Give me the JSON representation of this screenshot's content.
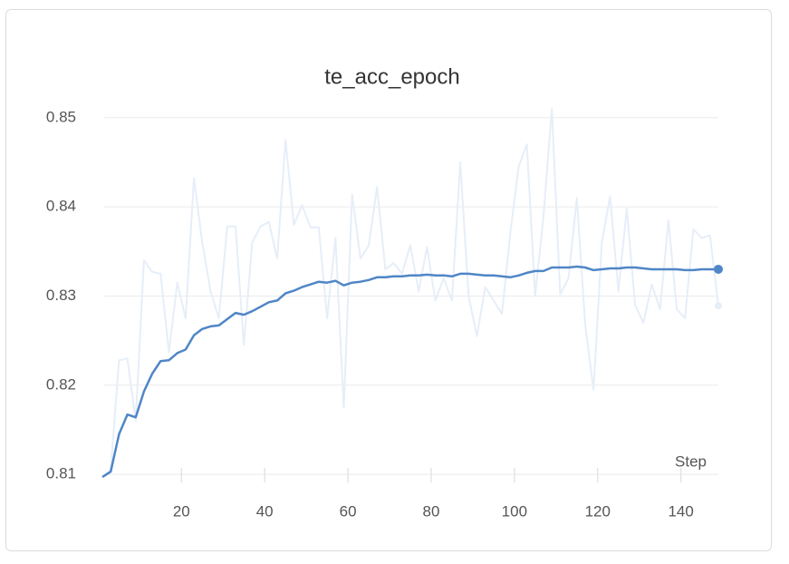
{
  "chart_data": {
    "type": "line",
    "title": "te_acc_epoch",
    "x_label": "Step",
    "x": [
      1,
      3,
      5,
      7,
      9,
      11,
      13,
      15,
      17,
      19,
      21,
      23,
      25,
      27,
      29,
      31,
      33,
      35,
      37,
      39,
      41,
      43,
      45,
      47,
      49,
      51,
      53,
      55,
      57,
      59,
      61,
      63,
      65,
      67,
      69,
      71,
      73,
      75,
      77,
      79,
      81,
      83,
      85,
      87,
      89,
      91,
      93,
      95,
      97,
      99,
      101,
      103,
      105,
      107,
      109,
      111,
      113,
      115,
      117,
      119,
      121,
      123,
      125,
      127,
      129,
      131,
      133,
      135,
      137,
      139,
      141,
      143,
      145,
      147,
      149
    ],
    "series": [
      {
        "color": "#e6eef8",
        "values": [
          0.8097,
          0.8105,
          0.8228,
          0.823,
          0.816,
          0.834,
          0.8327,
          0.8325,
          0.8237,
          0.8315,
          0.8275,
          0.8432,
          0.836,
          0.8305,
          0.8275,
          0.8378,
          0.8378,
          0.8245,
          0.836,
          0.8378,
          0.8383,
          0.8342,
          0.8475,
          0.838,
          0.8402,
          0.8377,
          0.8377,
          0.8275,
          0.8365,
          0.8175,
          0.8414,
          0.8342,
          0.8357,
          0.8422,
          0.833,
          0.8337,
          0.8325,
          0.8357,
          0.8305,
          0.8355,
          0.8295,
          0.832,
          0.8295,
          0.845,
          0.83,
          0.8255,
          0.831,
          0.8295,
          0.828,
          0.837,
          0.8445,
          0.847,
          0.83,
          0.839,
          0.851,
          0.8302,
          0.832,
          0.841,
          0.8268,
          0.8195,
          0.836,
          0.8412,
          0.8305,
          0.8398,
          0.829,
          0.827,
          0.8313,
          0.8285,
          0.8385,
          0.8285,
          0.8275,
          0.8375,
          0.8365,
          0.8368,
          0.8289
        ]
      },
      {
        "color": "#4f86c6",
        "values": [
          0.8097,
          0.8103,
          0.8145,
          0.8167,
          0.8164,
          0.8193,
          0.8213,
          0.8227,
          0.8228,
          0.8236,
          0.824,
          0.8256,
          0.8263,
          0.8266,
          0.8267,
          0.8274,
          0.8281,
          0.8279,
          0.8283,
          0.8288,
          0.8293,
          0.8295,
          0.8303,
          0.8306,
          0.831,
          0.8313,
          0.8316,
          0.8315,
          0.8317,
          0.8312,
          0.8315,
          0.8316,
          0.8318,
          0.8321,
          0.8321,
          0.8322,
          0.8322,
          0.8323,
          0.8323,
          0.8324,
          0.8323,
          0.8323,
          0.8322,
          0.8325,
          0.8325,
          0.8324,
          0.8323,
          0.8323,
          0.8322,
          0.8321,
          0.8323,
          0.8326,
          0.8328,
          0.8328,
          0.8332,
          0.8332,
          0.8332,
          0.8333,
          0.8332,
          0.8329,
          0.833,
          0.8331,
          0.8331,
          0.8332,
          0.8332,
          0.8331,
          0.833,
          0.833,
          0.833,
          0.833,
          0.8329,
          0.8329,
          0.833,
          0.833,
          0.833
        ]
      }
    ],
    "xlim": [
      1,
      149
    ],
    "xticks": [
      20,
      40,
      60,
      80,
      100,
      120,
      140
    ],
    "ylim": [
      0.8093,
      0.8512
    ],
    "yticks": [
      0.81,
      0.82,
      0.83,
      0.84,
      0.85
    ],
    "grid": true
  }
}
